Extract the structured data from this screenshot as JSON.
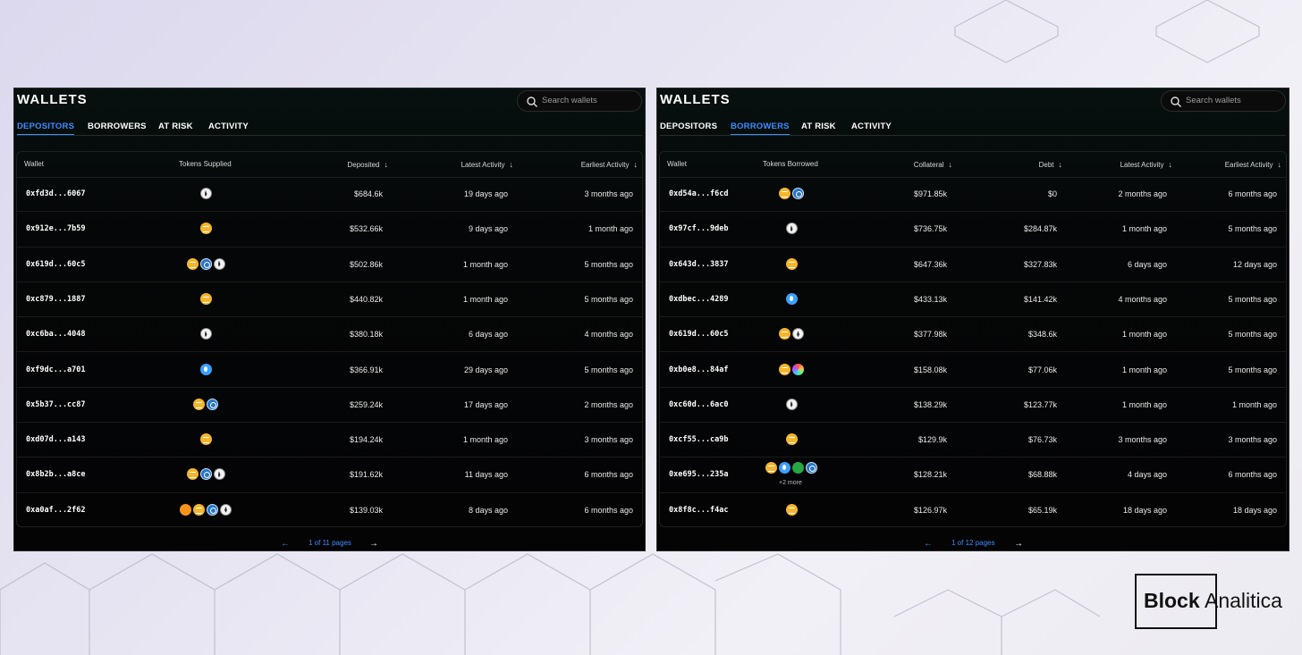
{
  "brand": {
    "word1": "Block",
    "word2": "Analitica"
  },
  "left": {
    "title": "WALLETS",
    "search_placeholder": "Search wallets",
    "tabs": [
      "DEPOSITORS",
      "BORROWERS",
      "AT RISK",
      "ACTIVITY"
    ],
    "active_tab": "DEPOSITORS",
    "columns": {
      "wallet": "Wallet",
      "tokens": "Tokens Supplied",
      "amount": "Deposited",
      "latest": "Latest Activity",
      "earliest": "Earliest Activity"
    },
    "rows": [
      {
        "wallet": "0xfd3d...6067",
        "tokens": [
          "eth"
        ],
        "amount": "$684.6k",
        "latest": "19 days ago",
        "earliest": "3 months ago"
      },
      {
        "wallet": "0x912e...7b59",
        "tokens": [
          "dai"
        ],
        "amount": "$532.66k",
        "latest": "9 days ago",
        "earliest": "1 month ago"
      },
      {
        "wallet": "0x619d...60c5",
        "tokens": [
          "dai",
          "usdc",
          "eth"
        ],
        "amount": "$502.86k",
        "latest": "1 month ago",
        "earliest": "5 months ago"
      },
      {
        "wallet": "0xc879...1887",
        "tokens": [
          "dai"
        ],
        "amount": "$440.82k",
        "latest": "1 month ago",
        "earliest": "5 months ago"
      },
      {
        "wallet": "0xc6ba...4048",
        "tokens": [
          "eth"
        ],
        "amount": "$380.18k",
        "latest": "6 days ago",
        "earliest": "4 months ago"
      },
      {
        "wallet": "0xf9dc...a701",
        "tokens": [
          "lido"
        ],
        "amount": "$366.91k",
        "latest": "29 days ago",
        "earliest": "5 months ago"
      },
      {
        "wallet": "0x5b37...cc87",
        "tokens": [
          "dai",
          "usdc"
        ],
        "amount": "$259.24k",
        "latest": "17 days ago",
        "earliest": "2 months ago"
      },
      {
        "wallet": "0xd07d...a143",
        "tokens": [
          "dai"
        ],
        "amount": "$194.24k",
        "latest": "1 month ago",
        "earliest": "3 months ago"
      },
      {
        "wallet": "0x8b2b...a8ce",
        "tokens": [
          "dai",
          "usdc",
          "eth"
        ],
        "amount": "$191.62k",
        "latest": "11 days ago",
        "earliest": "6 months ago"
      },
      {
        "wallet": "0xa0af...2f62",
        "tokens": [
          "wbtc",
          "dai",
          "usdc",
          "eth"
        ],
        "amount": "$139.03k",
        "latest": "8 days ago",
        "earliest": "6 months ago"
      }
    ],
    "pagination": {
      "prev": "←",
      "text": "1 of 11 pages",
      "next": "→"
    }
  },
  "right": {
    "title": "WALLETS",
    "search_placeholder": "Search wallets",
    "tabs": [
      "DEPOSITORS",
      "BORROWERS",
      "AT RISK",
      "ACTIVITY"
    ],
    "active_tab": "BORROWERS",
    "columns": {
      "wallet": "Wallet",
      "tokens": "Tokens Borrowed",
      "collateral": "Collateral",
      "debt": "Debt",
      "latest": "Latest Activity",
      "earliest": "Earliest Activity"
    },
    "rows": [
      {
        "wallet": "0xd54a...f6cd",
        "tokens": [
          "dai",
          "usdc"
        ],
        "collateral": "$971.85k",
        "debt": "$0",
        "latest": "2 months ago",
        "earliest": "6 months ago"
      },
      {
        "wallet": "0x97cf...9deb",
        "tokens": [
          "eth"
        ],
        "collateral": "$736.75k",
        "debt": "$284.87k",
        "latest": "1 month ago",
        "earliest": "5 months ago"
      },
      {
        "wallet": "0x643d...3837",
        "tokens": [
          "dai"
        ],
        "collateral": "$647.36k",
        "debt": "$327.83k",
        "latest": "6 days ago",
        "earliest": "12 days ago"
      },
      {
        "wallet": "0xdbec...4289",
        "tokens": [
          "lido"
        ],
        "collateral": "$433.13k",
        "debt": "$141.42k",
        "latest": "4 months ago",
        "earliest": "5 months ago"
      },
      {
        "wallet": "0x619d...60c5",
        "tokens": [
          "dai",
          "eth"
        ],
        "collateral": "$377.98k",
        "debt": "$348.6k",
        "latest": "1 month ago",
        "earliest": "5 months ago"
      },
      {
        "wallet": "0xb0e8...84af",
        "tokens": [
          "dai",
          "rainbow"
        ],
        "collateral": "$158.08k",
        "debt": "$77.06k",
        "latest": "1 month ago",
        "earliest": "5 months ago"
      },
      {
        "wallet": "0xc60d...6ac0",
        "tokens": [
          "eth"
        ],
        "collateral": "$138.29k",
        "debt": "$123.77k",
        "latest": "1 month ago",
        "earliest": "1 month ago"
      },
      {
        "wallet": "0xcf55...ca9b",
        "tokens": [
          "dai"
        ],
        "collateral": "$129.9k",
        "debt": "$76.73k",
        "latest": "3 months ago",
        "earliest": "3 months ago"
      },
      {
        "wallet": "0xe695...235a",
        "tokens": [
          "dai",
          "lido",
          "gno",
          "usdc"
        ],
        "more": "+2 more",
        "collateral": "$128.21k",
        "debt": "$68.88k",
        "latest": "4 days ago",
        "earliest": "6 months ago"
      },
      {
        "wallet": "0x8f8c...f4ac",
        "tokens": [
          "dai"
        ],
        "collateral": "$126.97k",
        "debt": "$65.19k",
        "latest": "18 days ago",
        "earliest": "18 days ago"
      }
    ],
    "pagination": {
      "prev": "←",
      "text": "1 of 12 pages",
      "next": "→"
    }
  },
  "colors": {
    "accent": "#3d8bff",
    "panel_bg": "#050607",
    "dai": "#f5b52c",
    "usdc": "#2775ca",
    "eth": "#f2f2f2"
  }
}
